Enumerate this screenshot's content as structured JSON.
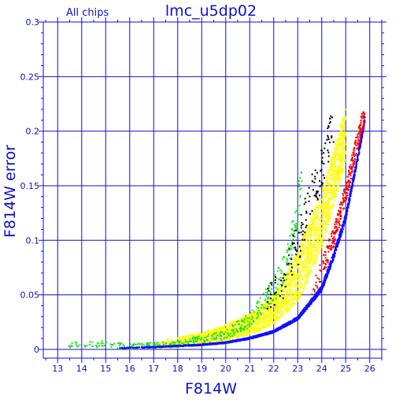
{
  "chart_data": {
    "type": "scatter",
    "title": "lmc_u5dp02",
    "subtitle": "All chips",
    "xlabel": "F814W",
    "ylabel": "F814W error",
    "xlim": [
      12.4,
      26.5
    ],
    "ylim": [
      -0.008,
      0.3
    ],
    "xticks": [
      "13",
      "14",
      "15",
      "16",
      "17",
      "18",
      "19",
      "20",
      "21",
      "22",
      "23",
      "24",
      "25",
      "26"
    ],
    "yticks": [
      "0",
      "0.05",
      "0.1",
      "0.15",
      "0.2",
      "0.25",
      "0.3"
    ],
    "grid": true,
    "colors": {
      "axis": "#1010c8",
      "background": "#ffffff",
      "series_yellow": "#ffff00",
      "series_green": "#22dd22",
      "series_blue": "#1010ff",
      "series_red": "#ff0000",
      "series_black": "#000000"
    },
    "series": [
      {
        "color": "#ffff00",
        "spread": 0.032,
        "points": [
          [
            17.0,
            0.003
          ],
          [
            18.0,
            0.005
          ],
          [
            19.0,
            0.008
          ],
          [
            20.0,
            0.013
          ],
          [
            21.0,
            0.02
          ],
          [
            22.0,
            0.032
          ],
          [
            22.5,
            0.045
          ],
          [
            23.0,
            0.06
          ],
          [
            23.5,
            0.085
          ],
          [
            24.0,
            0.11
          ],
          [
            24.5,
            0.15
          ],
          [
            25.0,
            0.19
          ]
        ]
      },
      {
        "color": "#22dd22",
        "spread": 0.02,
        "points": [
          [
            13.0,
            0.003
          ],
          [
            15.0,
            0.004
          ],
          [
            16.0,
            0.002
          ],
          [
            18.0,
            0.004
          ],
          [
            20.0,
            0.012
          ],
          [
            21.0,
            0.025
          ],
          [
            22.0,
            0.05
          ],
          [
            22.5,
            0.07
          ],
          [
            23.0,
            0.12
          ],
          [
            23.2,
            0.17
          ]
        ]
      },
      {
        "color": "#1010ff",
        "spread": 0.004,
        "points": [
          [
            15.5,
            0.001
          ],
          [
            17.0,
            0.002
          ],
          [
            18.0,
            0.003
          ],
          [
            19.0,
            0.004
          ],
          [
            20.0,
            0.006
          ],
          [
            21.0,
            0.01
          ],
          [
            22.0,
            0.016
          ],
          [
            23.0,
            0.028
          ],
          [
            24.0,
            0.055
          ],
          [
            24.5,
            0.085
          ],
          [
            25.0,
            0.12
          ],
          [
            25.5,
            0.175
          ],
          [
            25.8,
            0.21
          ]
        ]
      },
      {
        "color": "#ff0000",
        "spread": 0.012,
        "points": [
          [
            23.5,
            0.045
          ],
          [
            24.0,
            0.07
          ],
          [
            24.5,
            0.1
          ],
          [
            25.0,
            0.14
          ],
          [
            25.5,
            0.19
          ],
          [
            25.8,
            0.215
          ]
        ]
      },
      {
        "color": "#000000",
        "spread": 0.025,
        "points": [
          [
            21.5,
            0.04
          ],
          [
            22.5,
            0.06
          ],
          [
            23.0,
            0.09
          ],
          [
            23.5,
            0.13
          ],
          [
            24.0,
            0.16
          ],
          [
            24.5,
            0.2
          ]
        ]
      }
    ]
  }
}
